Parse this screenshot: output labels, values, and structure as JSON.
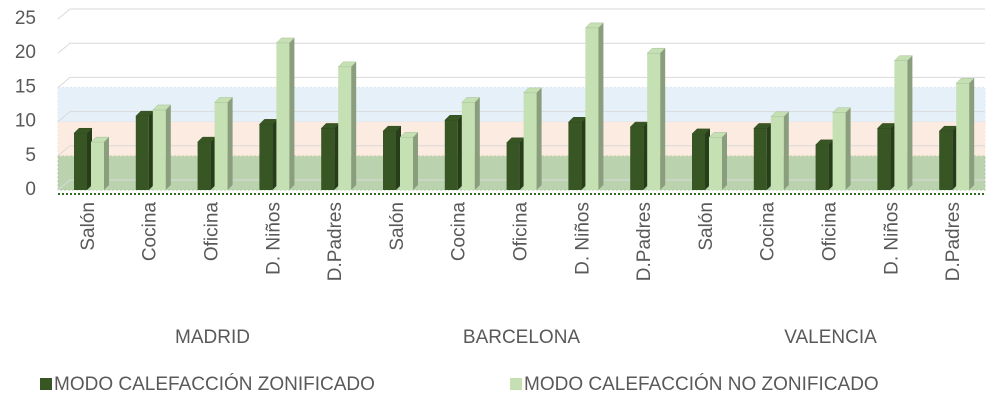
{
  "chart_data": {
    "type": "bar3d",
    "groups": [
      {
        "label": "MADRID",
        "categories": [
          "Salón",
          "Cocina",
          "Oficina",
          "D. Niños",
          "D.Padres"
        ]
      },
      {
        "label": "BARCELONA",
        "categories": [
          "Salón",
          "Cocina",
          "Oficina",
          "D. Niños",
          "D.Padres"
        ]
      },
      {
        "label": "VALENCIA",
        "categories": [
          "Salón",
          "Cocina",
          "Oficina",
          "D. Niños",
          "D.Padres"
        ]
      }
    ],
    "series": [
      {
        "name": "MODO CALEFACCIÓN ZONIFICADO",
        "color": "#375623",
        "values": [
          8.3,
          10.8,
          7,
          9.6,
          9,
          8.6,
          10.2,
          6.9,
          9.9,
          9.2,
          8.2,
          9,
          6.6,
          9,
          8.6
        ]
      },
      {
        "name": "MODO CALEFACCIÓN NO ZONIFICADO",
        "color": "#c5e0b3",
        "values": [
          7,
          11.7,
          12.8,
          21.5,
          18,
          7.7,
          12.8,
          14.2,
          23.7,
          20,
          7.7,
          10.7,
          11.3,
          18.9,
          15.6
        ]
      }
    ],
    "bands": [
      {
        "from": 0,
        "to": 5,
        "color": "#a9c79a"
      },
      {
        "from": 5,
        "to": 10,
        "color": "#fbe3d3"
      },
      {
        "from": 10,
        "to": 15,
        "color": "#dbe9f6"
      }
    ],
    "ylim": [
      0,
      25
    ],
    "yticks": [
      0,
      5,
      10,
      15,
      20,
      25
    ],
    "grid": true
  }
}
